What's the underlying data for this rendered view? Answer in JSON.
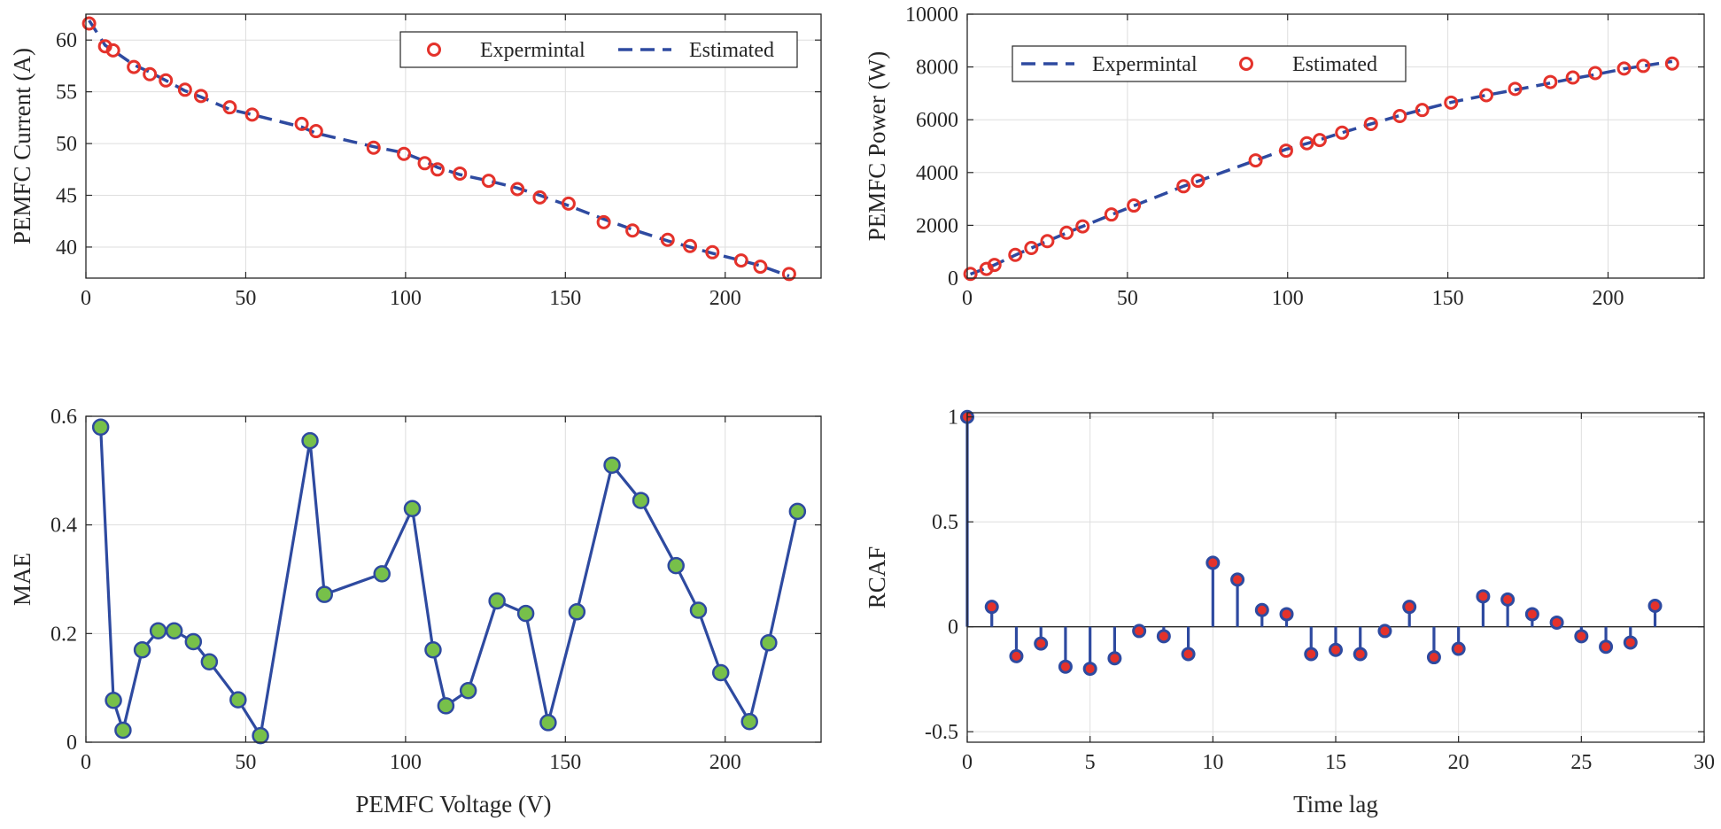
{
  "colors": {
    "line_blue": "#2e4aa0",
    "marker_red": "#e4322b",
    "marker_green": "#77c04a",
    "axis": "#262626",
    "grid": "#dedede"
  },
  "chart_data": [
    {
      "id": "current",
      "type": "line",
      "title": "",
      "xlabel": "",
      "ylabel": "PEMFC Current (A)",
      "xlim": [
        0,
        230
      ],
      "ylim": [
        37,
        62.5
      ],
      "xticks": [
        0,
        50,
        100,
        150,
        200
      ],
      "yticks": [
        40,
        45,
        50,
        55,
        60
      ],
      "grid": true,
      "legend": {
        "position": "top-right",
        "entries": [
          {
            "label": "Expermintal",
            "style": "circle-red"
          },
          {
            "label": "Estimated",
            "style": "dashed-blue"
          }
        ]
      },
      "x": [
        1.0,
        6.0,
        8.5,
        15.0,
        20.0,
        25.0,
        31.0,
        36.0,
        45.0,
        52.0,
        67.5,
        72.0,
        90.0,
        99.5,
        106.0,
        110.0,
        117.0,
        126.0,
        135.0,
        142.0,
        151.0,
        162.0,
        171.0,
        182.0,
        189.0,
        196.0,
        205.0,
        211.0,
        220.0
      ],
      "series": [
        {
          "name": "Expermintal",
          "style": "markers",
          "values": [
            61.6,
            59.4,
            59.0,
            57.4,
            56.7,
            56.1,
            55.2,
            54.6,
            53.5,
            52.8,
            51.9,
            51.2,
            49.6,
            49.0,
            48.1,
            47.5,
            47.1,
            46.4,
            45.6,
            44.8,
            44.2,
            42.4,
            41.6,
            40.7,
            40.1,
            39.5,
            38.7,
            38.1,
            37.4
          ]
        },
        {
          "name": "Estimated",
          "style": "dashed",
          "values": [
            61.9,
            59.5,
            59.0,
            57.6,
            56.9,
            56.1,
            55.1,
            54.5,
            53.3,
            52.8,
            51.6,
            51.0,
            49.7,
            49.1,
            48.3,
            47.7,
            47.0,
            46.4,
            45.7,
            45.0,
            44.0,
            42.7,
            41.7,
            40.6,
            40.0,
            39.4,
            38.7,
            38.2,
            37.2
          ]
        }
      ]
    },
    {
      "id": "power",
      "type": "line",
      "title": "",
      "xlabel": "",
      "ylabel": "PEMFC Power (W)",
      "xlim": [
        0,
        230
      ],
      "ylim": [
        0,
        10000
      ],
      "xticks": [
        0,
        50,
        100,
        150,
        200
      ],
      "yticks": [
        0,
        2000,
        4000,
        6000,
        8000,
        10000
      ],
      "grid": true,
      "legend": {
        "position": "top-left",
        "entries": [
          {
            "label": "Expermintal",
            "style": "dashed-blue"
          },
          {
            "label": "Estimated",
            "style": "circle-red"
          }
        ]
      },
      "x": [
        1.0,
        6.0,
        8.5,
        15.0,
        20.0,
        25.0,
        31.0,
        36.0,
        45.0,
        52.0,
        67.5,
        72.0,
        90.0,
        99.5,
        106.0,
        110.0,
        117.0,
        126.0,
        135.0,
        142.0,
        151.0,
        162.0,
        171.0,
        182.0,
        189.0,
        196.0,
        205.0,
        211.0,
        220.0
      ],
      "series": [
        {
          "name": "Expermintal",
          "style": "dashed",
          "values": [
            150,
            380,
            500,
            870,
            1140,
            1400,
            1710,
            1960,
            2400,
            2740,
            3480,
            3670,
            4460,
            4880,
            5100,
            5240,
            5510,
            5840,
            6160,
            6380,
            6660,
            6930,
            7130,
            7390,
            7560,
            7710,
            7930,
            8040,
            8210
          ]
        },
        {
          "name": "Estimated",
          "style": "markers",
          "values": [
            160,
            350,
            500,
            880,
            1140,
            1400,
            1720,
            1960,
            2410,
            2750,
            3480,
            3690,
            4460,
            4830,
            5110,
            5230,
            5510,
            5840,
            6140,
            6370,
            6650,
            6930,
            7170,
            7430,
            7600,
            7770,
            7940,
            8040,
            8130
          ]
        }
      ]
    },
    {
      "id": "mae",
      "type": "line",
      "title": "",
      "xlabel": "PEMFC Voltage (V)",
      "ylabel": "MAE",
      "xlim": [
        0,
        230
      ],
      "ylim": [
        0,
        0.6
      ],
      "xticks": [
        0,
        50,
        100,
        150,
        200
      ],
      "yticks": [
        0,
        0.2,
        0.4,
        0.6
      ],
      "grid": true,
      "x": [
        6.0,
        10.0,
        13.0,
        19.0,
        24.0,
        29.0,
        35.0,
        40.0,
        49.0,
        56.0,
        71.5,
        76.0,
        94.0,
        103.5,
        110.0,
        114.0,
        121.0,
        130.0,
        139.0,
        146.0,
        155.0,
        166.0,
        175.0,
        186.0,
        193.0,
        200.0,
        209.0,
        215.0,
        224.0
      ],
      "series": [
        {
          "name": "MAE",
          "values": [
            0.58,
            0.077,
            0.022,
            0.17,
            0.205,
            0.205,
            0.185,
            0.148,
            0.078,
            0.012,
            0.555,
            0.272,
            0.31,
            0.43,
            0.17,
            0.067,
            0.095,
            0.26,
            0.237,
            0.036,
            0.24,
            0.51,
            0.445,
            0.325,
            0.243,
            0.128,
            0.038,
            0.183,
            0.425
          ]
        }
      ]
    },
    {
      "id": "rcaf",
      "type": "stem",
      "title": "",
      "xlabel": "Time lag",
      "ylabel": "RCAF",
      "xlim": [
        0,
        30
      ],
      "ylim": [
        -0.55,
        1.02
      ],
      "xticks": [
        0,
        5,
        10,
        15,
        20,
        25,
        30
      ],
      "ytick_labels": [
        {
          "value": -0.5,
          "label": "-0.5"
        },
        {
          "value": 0,
          "label": "0"
        },
        {
          "value": 0.5,
          "label": "0.5"
        },
        {
          "value": 1,
          "label": "1"
        }
      ],
      "grid": true,
      "x": [
        0,
        1,
        2,
        3,
        4,
        5,
        6,
        7,
        8,
        9,
        10,
        11,
        12,
        13,
        14,
        15,
        16,
        17,
        18,
        19,
        20,
        21,
        22,
        23,
        24,
        25,
        26,
        27,
        28
      ],
      "series": [
        {
          "name": "RCAF",
          "values": [
            1.0,
            0.095,
            -0.14,
            -0.08,
            -0.19,
            -0.2,
            -0.15,
            -0.02,
            -0.045,
            -0.13,
            0.305,
            0.225,
            0.08,
            0.06,
            -0.13,
            -0.11,
            -0.13,
            -0.02,
            0.095,
            -0.145,
            -0.105,
            0.145,
            0.13,
            0.06,
            0.02,
            -0.045,
            -0.095,
            -0.075,
            0.1
          ]
        }
      ]
    }
  ]
}
